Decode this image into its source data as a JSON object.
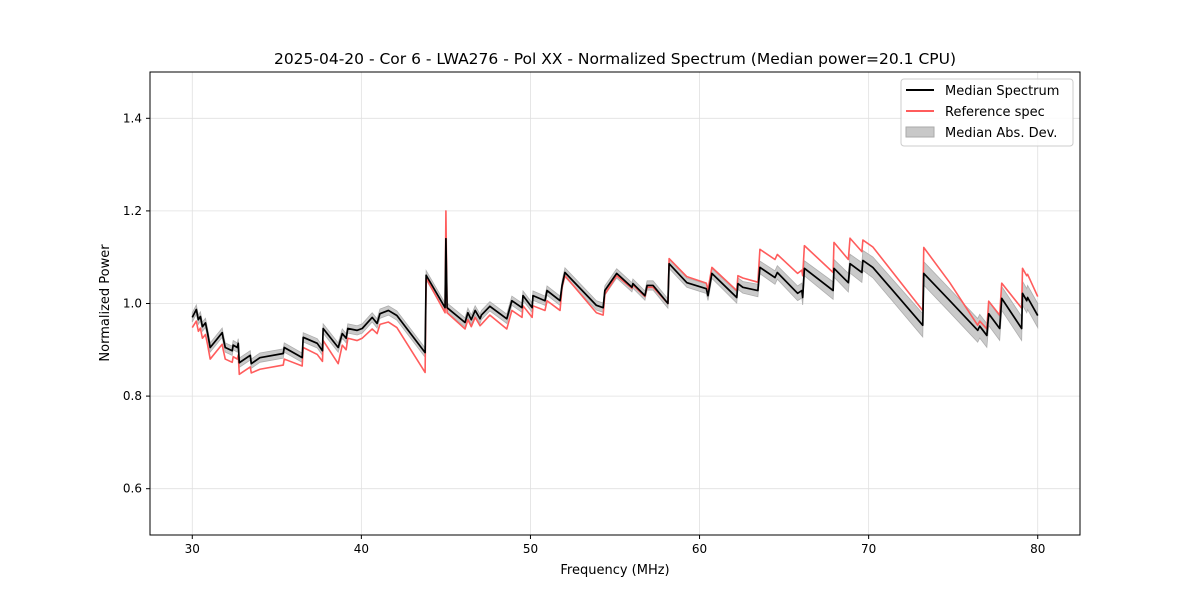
{
  "chart_data": {
    "type": "line",
    "title": "2025-04-20 - Cor 6 - LWA276 - Pol XX - Normalized Spectrum (Median power=20.1 CPU)",
    "xlabel": "Frequency (MHz)",
    "ylabel": "Normalized Power",
    "xlim": [
      27.5,
      82.5
    ],
    "ylim": [
      0.5,
      1.5
    ],
    "xticks": [
      30,
      40,
      50,
      60,
      70,
      80
    ],
    "xtick_labels": [
      "30",
      "40",
      "50",
      "60",
      "70",
      "80"
    ],
    "yticks": [
      0.6,
      0.8,
      1.0,
      1.2,
      1.4
    ],
    "ytick_labels": [
      "0.6",
      "0.8",
      "1.0",
      "1.2",
      "1.4"
    ],
    "grid": true,
    "legend_position": "top-right",
    "legend": [
      "Median Spectrum",
      "Reference spec",
      "Median Abs. Dev."
    ],
    "colors": {
      "median": "#000000",
      "reference": "#ff5c5c",
      "mad": "#c8c8c8",
      "grid": "#e0e0e0"
    },
    "series": [
      {
        "name": "Median Spectrum",
        "points": [
          [
            30.0,
            0.97
          ],
          [
            30.24,
            0.987
          ],
          [
            30.36,
            0.965
          ],
          [
            30.48,
            0.972
          ],
          [
            30.6,
            0.95
          ],
          [
            30.78,
            0.958
          ],
          [
            30.9,
            0.937
          ],
          [
            31.06,
            0.905
          ],
          [
            31.77,
            0.937
          ],
          [
            31.83,
            0.925
          ],
          [
            31.95,
            0.905
          ],
          [
            32.36,
            0.898
          ],
          [
            32.42,
            0.91
          ],
          [
            32.66,
            0.905
          ],
          [
            32.72,
            0.914
          ],
          [
            32.78,
            0.872
          ],
          [
            33.43,
            0.888
          ],
          [
            33.49,
            0.87
          ],
          [
            34.0,
            0.883
          ],
          [
            35.38,
            0.892
          ],
          [
            35.44,
            0.905
          ],
          [
            36.5,
            0.883
          ],
          [
            36.56,
            0.927
          ],
          [
            37.39,
            0.914
          ],
          [
            37.7,
            0.898
          ],
          [
            37.74,
            0.946
          ],
          [
            38.63,
            0.905
          ],
          [
            38.87,
            0.935
          ],
          [
            39.1,
            0.925
          ],
          [
            39.2,
            0.946
          ],
          [
            39.75,
            0.942
          ],
          [
            40.05,
            0.946
          ],
          [
            40.64,
            0.97
          ],
          [
            40.93,
            0.957
          ],
          [
            41.1,
            0.978
          ],
          [
            41.6,
            0.985
          ],
          [
            42.1,
            0.974
          ],
          [
            43.77,
            0.894
          ],
          [
            43.83,
            1.061
          ],
          [
            44.95,
            0.991
          ],
          [
            45.0,
            1.14
          ],
          [
            45.07,
            0.991
          ],
          [
            46.13,
            0.959
          ],
          [
            46.3,
            0.98
          ],
          [
            46.5,
            0.965
          ],
          [
            46.73,
            0.985
          ],
          [
            47.02,
            0.967
          ],
          [
            47.1,
            0.975
          ],
          [
            47.6,
            0.994
          ],
          [
            48.6,
            0.967
          ],
          [
            48.9,
            1.006
          ],
          [
            49.5,
            0.991
          ],
          [
            49.56,
            1.017
          ],
          [
            50.1,
            0.991
          ],
          [
            50.15,
            1.017
          ],
          [
            50.86,
            1.006
          ],
          [
            50.98,
            1.028
          ],
          [
            51.75,
            1.006
          ],
          [
            51.87,
            1.039
          ],
          [
            52.04,
            1.067
          ],
          [
            53.9,
            0.996
          ],
          [
            54.3,
            0.991
          ],
          [
            54.4,
            1.028
          ],
          [
            55.1,
            1.065
          ],
          [
            56.0,
            1.035
          ],
          [
            56.06,
            1.043
          ],
          [
            56.77,
            1.017
          ],
          [
            56.9,
            1.039
          ],
          [
            57.25,
            1.039
          ],
          [
            58.13,
            1.0
          ],
          [
            58.2,
            1.086
          ],
          [
            59.25,
            1.045
          ],
          [
            60.4,
            1.032
          ],
          [
            60.5,
            1.017
          ],
          [
            60.73,
            1.065
          ],
          [
            62.2,
            1.013
          ],
          [
            62.27,
            1.043
          ],
          [
            62.56,
            1.035
          ],
          [
            63.45,
            1.028
          ],
          [
            63.57,
            1.078
          ],
          [
            64.46,
            1.056
          ],
          [
            64.6,
            1.067
          ],
          [
            65.8,
            1.022
          ],
          [
            66.05,
            1.028
          ],
          [
            66.1,
            1.013
          ],
          [
            66.2,
            1.076
          ],
          [
            67.9,
            1.028
          ],
          [
            67.95,
            1.076
          ],
          [
            68.8,
            1.045
          ],
          [
            68.9,
            1.086
          ],
          [
            69.6,
            1.067
          ],
          [
            69.66,
            1.093
          ],
          [
            70.25,
            1.078
          ],
          [
            73.2,
            0.953
          ],
          [
            73.26,
            1.065
          ],
          [
            74.8,
            1.006
          ],
          [
            76.45,
            0.942
          ],
          [
            76.57,
            0.951
          ],
          [
            76.99,
            0.931
          ],
          [
            77.1,
            0.978
          ],
          [
            77.75,
            0.946
          ],
          [
            77.87,
            1.011
          ],
          [
            79.05,
            0.946
          ],
          [
            79.1,
            1.022
          ],
          [
            79.35,
            1.006
          ],
          [
            79.4,
            1.013
          ],
          [
            80.0,
            0.974
          ]
        ]
      },
      {
        "name": "Reference spec",
        "points": [
          [
            30.0,
            0.948
          ],
          [
            30.24,
            0.962
          ],
          [
            30.36,
            0.94
          ],
          [
            30.48,
            0.947
          ],
          [
            30.6,
            0.925
          ],
          [
            30.78,
            0.933
          ],
          [
            30.9,
            0.912
          ],
          [
            31.06,
            0.88
          ],
          [
            31.77,
            0.912
          ],
          [
            31.83,
            0.9
          ],
          [
            31.95,
            0.88
          ],
          [
            32.36,
            0.873
          ],
          [
            32.42,
            0.885
          ],
          [
            32.66,
            0.88
          ],
          [
            32.72,
            0.889
          ],
          [
            32.78,
            0.847
          ],
          [
            33.43,
            0.863
          ],
          [
            33.49,
            0.85
          ],
          [
            34.0,
            0.858
          ],
          [
            35.38,
            0.867
          ],
          [
            35.44,
            0.88
          ],
          [
            36.5,
            0.865
          ],
          [
            36.56,
            0.905
          ],
          [
            37.39,
            0.89
          ],
          [
            37.7,
            0.875
          ],
          [
            37.74,
            0.92
          ],
          [
            38.63,
            0.87
          ],
          [
            38.87,
            0.91
          ],
          [
            39.1,
            0.9
          ],
          [
            39.2,
            0.925
          ],
          [
            39.75,
            0.92
          ],
          [
            40.05,
            0.925
          ],
          [
            40.64,
            0.945
          ],
          [
            40.93,
            0.935
          ],
          [
            41.1,
            0.955
          ],
          [
            41.6,
            0.96
          ],
          [
            42.1,
            0.948
          ],
          [
            43.77,
            0.851
          ],
          [
            43.83,
            1.055
          ],
          [
            44.95,
            0.98
          ],
          [
            45.0,
            1.2
          ],
          [
            45.07,
            0.98
          ],
          [
            46.13,
            0.945
          ],
          [
            46.3,
            0.965
          ],
          [
            46.5,
            0.95
          ],
          [
            46.73,
            0.97
          ],
          [
            47.02,
            0.952
          ],
          [
            47.1,
            0.955
          ],
          [
            47.6,
            0.975
          ],
          [
            48.6,
            0.945
          ],
          [
            48.9,
            0.985
          ],
          [
            49.5,
            0.97
          ],
          [
            49.56,
            0.995
          ],
          [
            50.1,
            0.97
          ],
          [
            50.15,
            0.995
          ],
          [
            50.86,
            0.985
          ],
          [
            50.98,
            1.006
          ],
          [
            51.75,
            0.985
          ],
          [
            51.87,
            1.035
          ],
          [
            52.04,
            1.06
          ],
          [
            53.9,
            0.98
          ],
          [
            54.3,
            0.975
          ],
          [
            54.4,
            1.02
          ],
          [
            55.1,
            1.06
          ],
          [
            56.0,
            1.033
          ],
          [
            56.06,
            1.04
          ],
          [
            56.77,
            1.015
          ],
          [
            56.9,
            1.035
          ],
          [
            57.25,
            1.035
          ],
          [
            58.13,
            1.0
          ],
          [
            58.2,
            1.097
          ],
          [
            59.25,
            1.058
          ],
          [
            60.4,
            1.044
          ],
          [
            60.5,
            1.03
          ],
          [
            60.73,
            1.078
          ],
          [
            62.2,
            1.028
          ],
          [
            62.27,
            1.06
          ],
          [
            62.56,
            1.055
          ],
          [
            63.45,
            1.046
          ],
          [
            63.57,
            1.117
          ],
          [
            64.46,
            1.095
          ],
          [
            64.6,
            1.106
          ],
          [
            65.8,
            1.065
          ],
          [
            66.05,
            1.072
          ],
          [
            66.1,
            1.06
          ],
          [
            66.2,
            1.125
          ],
          [
            67.9,
            1.067
          ],
          [
            67.95,
            1.132
          ],
          [
            68.8,
            1.095
          ],
          [
            68.9,
            1.141
          ],
          [
            69.6,
            1.112
          ],
          [
            69.66,
            1.137
          ],
          [
            70.25,
            1.122
          ],
          [
            73.2,
            0.985
          ],
          [
            73.26,
            1.121
          ],
          [
            74.8,
            1.045
          ],
          [
            76.45,
            0.953
          ],
          [
            76.57,
            0.962
          ],
          [
            76.99,
            0.945
          ],
          [
            77.1,
            1.005
          ],
          [
            77.75,
            0.975
          ],
          [
            77.87,
            1.044
          ],
          [
            79.05,
            0.99
          ],
          [
            79.1,
            1.076
          ],
          [
            79.35,
            1.06
          ],
          [
            79.4,
            1.063
          ],
          [
            80.0,
            1.015
          ]
        ]
      }
    ],
    "mad_by_frequency": [
      [
        30,
        0.01
      ],
      [
        60,
        0.01
      ],
      [
        66,
        0.016
      ],
      [
        72,
        0.025
      ],
      [
        80,
        0.026
      ]
    ]
  }
}
